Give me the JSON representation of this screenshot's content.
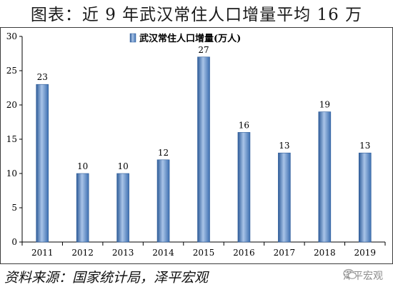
{
  "page": {
    "title": "图表：近 9 年武汉常住人口增量平均 16 万",
    "source": "资料来源：国家统计局，泽平宏观",
    "watermark": "泽平宏观"
  },
  "colors": {
    "bar": "#4f81bd",
    "bar_dark": "#2e5c99",
    "bar_light": "#a9c4e8",
    "axis": "#000000"
  },
  "chart_data": {
    "type": "bar",
    "title": "",
    "xlabel": "",
    "ylabel": "",
    "categories": [
      "2011",
      "2012",
      "2013",
      "2014",
      "2015",
      "2016",
      "2017",
      "2018",
      "2019"
    ],
    "series": [
      {
        "name": "武汉常住人口增量(万人)",
        "values": [
          23,
          10,
          10,
          12,
          27,
          16,
          13,
          19,
          13
        ]
      }
    ],
    "ylim": [
      0,
      30
    ],
    "yticks": [
      0,
      5,
      10,
      15,
      20,
      25,
      30
    ],
    "data_labels": [
      "23",
      "10",
      "10",
      "12",
      "27",
      "16",
      "13",
      "19",
      "13"
    ],
    "legend_position": "top-center",
    "grid": false
  }
}
